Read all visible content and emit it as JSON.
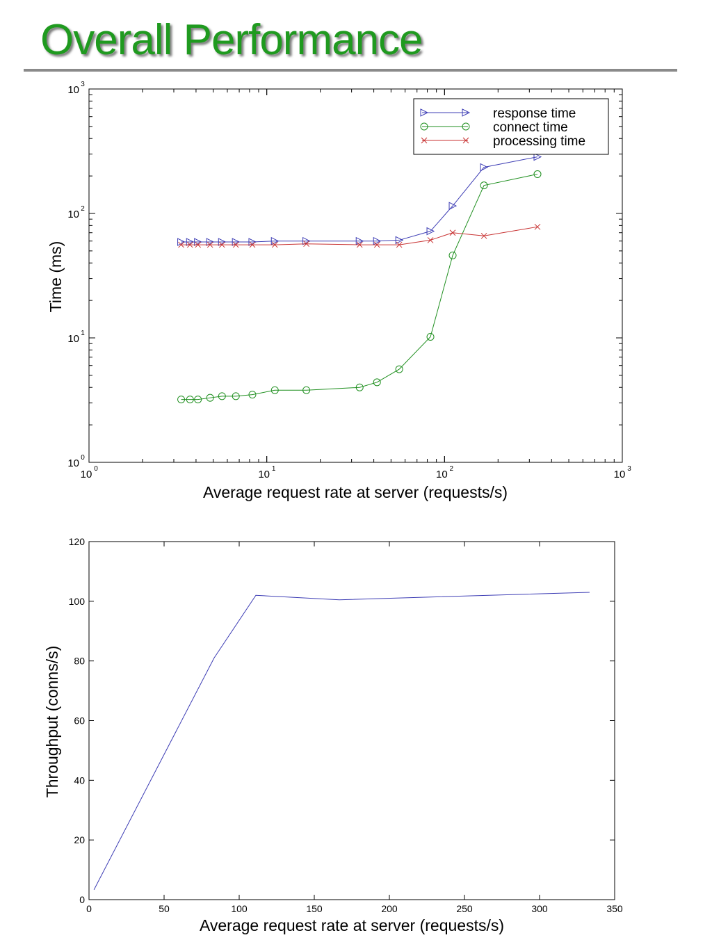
{
  "title": "Overall Performance",
  "chart_data": [
    {
      "type": "line",
      "xscale": "log",
      "yscale": "log",
      "xlim": [
        1,
        1000
      ],
      "ylim": [
        1,
        1000
      ],
      "xlabel": "Average request rate at server (requests/s)",
      "ylabel": "Time (ms)",
      "xticks": [
        1,
        10,
        100,
        1000
      ],
      "yticks": [
        1,
        10,
        100,
        1000
      ],
      "grid": false,
      "legend": "top-right",
      "x": [
        3.3,
        3.7,
        4.1,
        4.8,
        5.6,
        6.7,
        8.3,
        11.1,
        16.7,
        33.3,
        41.7,
        55.6,
        83.3,
        111.1,
        166.7,
        333.3
      ],
      "series": [
        {
          "name": "response time",
          "color": "#3c3cb4",
          "marker": "triangle-right",
          "values": [
            59,
            59,
            59,
            59,
            59,
            59,
            59,
            60,
            60,
            60,
            60,
            61,
            72,
            115,
            235,
            285
          ]
        },
        {
          "name": "connect time",
          "color": "#1f8f1f",
          "marker": "circle",
          "values": [
            3.2,
            3.2,
            3.2,
            3.3,
            3.4,
            3.4,
            3.5,
            3.8,
            3.8,
            4.0,
            4.4,
            5.6,
            10.2,
            46,
            168,
            207
          ]
        },
        {
          "name": "processing time",
          "color": "#c83232",
          "marker": "x",
          "values": [
            56,
            56,
            56,
            56,
            56,
            56,
            56,
            56,
            57,
            56,
            56,
            56,
            61,
            70,
            66,
            78
          ]
        }
      ]
    },
    {
      "type": "line",
      "xlim": [
        0,
        350
      ],
      "ylim": [
        0,
        120
      ],
      "xlabel": "Average request rate at server (requests/s)",
      "ylabel": "Throughput (conns/s)",
      "xticks": [
        0,
        50,
        100,
        150,
        200,
        250,
        300,
        350
      ],
      "yticks": [
        0,
        20,
        40,
        60,
        80,
        100,
        120
      ],
      "grid": false,
      "series": [
        {
          "color": "#3c3cb4",
          "x": [
            3.3,
            83.3,
            111.1,
            166.7,
            333.3
          ],
          "values": [
            3.3,
            81,
            102,
            100.5,
            103
          ]
        }
      ]
    }
  ]
}
